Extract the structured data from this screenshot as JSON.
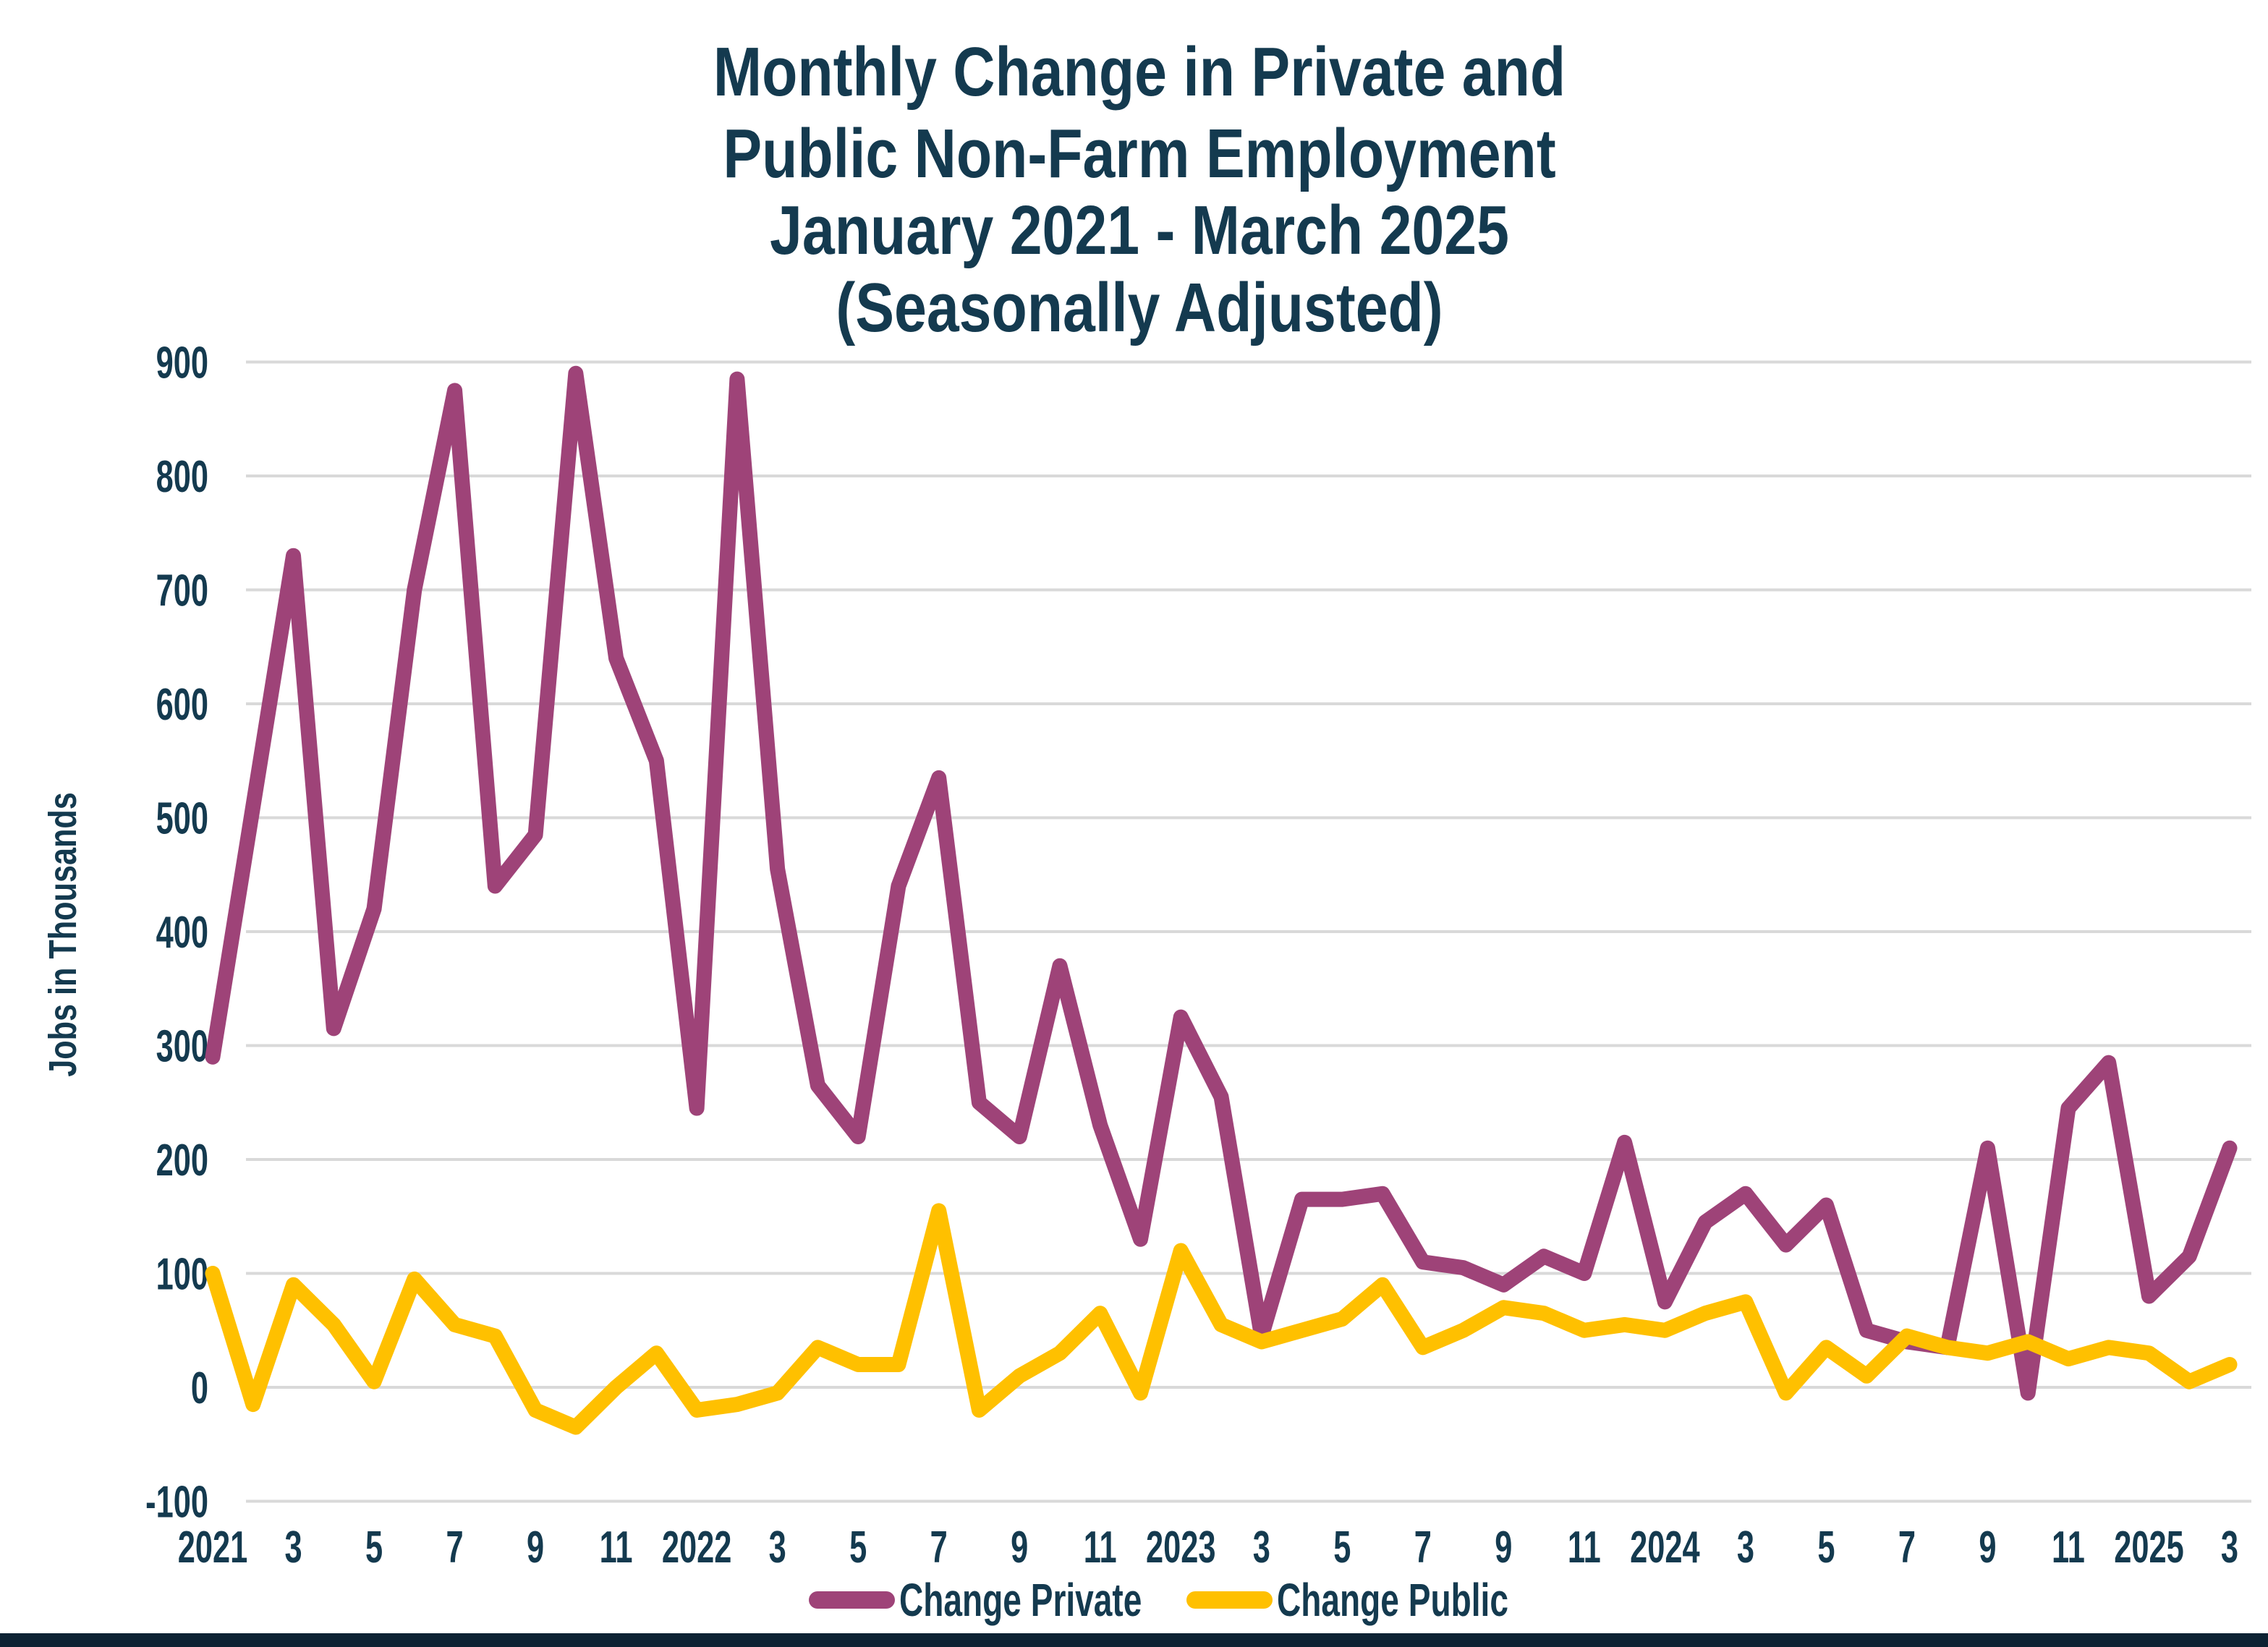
{
  "title": {
    "line1": "Monthly Change in Private and",
    "line2": "Public Non-Farm Employment",
    "line3": "January 2021 - March 2025",
    "line4": "(Seasonally Adjusted)"
  },
  "y_axis": {
    "label": "Jobs in Thousands"
  },
  "legend": {
    "private_label": "Change Private",
    "public_label": "Change Public"
  },
  "colors": {
    "private_line": "#9E4378",
    "public_line": "#FFC000",
    "text_navy": "#143A4F",
    "gridline": "#D9D9D9",
    "bottom_bar": "#0D2233",
    "background": "#FFFFFF"
  },
  "chart_data": {
    "type": "line",
    "title": "Monthly Change in Private and Public Non-Farm Employment January 2021 - March 2025 (Seasonally Adjusted)",
    "ylabel": "Jobs in Thousands",
    "xlabel": "",
    "ylim": [
      -100,
      900
    ],
    "y_ticks": [
      900,
      800,
      700,
      600,
      500,
      400,
      300,
      200,
      100,
      0,
      -100
    ],
    "x_tick_labels": [
      "2021",
      "3",
      "5",
      "7",
      "9",
      "11",
      "2022",
      "3",
      "5",
      "7",
      "9",
      "11",
      "2023",
      "3",
      "5",
      "7",
      "9",
      "11",
      "2024",
      "3",
      "5",
      "7",
      "9",
      "11",
      "2025",
      "3"
    ],
    "grid": true,
    "legend_position": "bottom",
    "x": [
      "Jan 2021",
      "Feb 2021",
      "Mar 2021",
      "Apr 2021",
      "May 2021",
      "Jun 2021",
      "Jul 2021",
      "Aug 2021",
      "Sep 2021",
      "Oct 2021",
      "Nov 2021",
      "Dec 2021",
      "Jan 2022",
      "Feb 2022",
      "Mar 2022",
      "Apr 2022",
      "May 2022",
      "Jun 2022",
      "Jul 2022",
      "Aug 2022",
      "Sep 2022",
      "Oct 2022",
      "Nov 2022",
      "Dec 2022",
      "Jan 2023",
      "Feb 2023",
      "Mar 2023",
      "Apr 2023",
      "May 2023",
      "Jun 2023",
      "Jul 2023",
      "Aug 2023",
      "Sep 2023",
      "Oct 2023",
      "Nov 2023",
      "Dec 2023",
      "Jan 2024",
      "Feb 2024",
      "Mar 2024",
      "Apr 2024",
      "May 2024",
      "Jun 2024",
      "Jul 2024",
      "Aug 2024",
      "Sep 2024",
      "Oct 2024",
      "Nov 2024",
      "Dec 2024",
      "Jan 2025",
      "Feb 2025",
      "Mar 2025"
    ],
    "series": [
      {
        "name": "Change Private",
        "color": "#9E4378",
        "values": [
          290,
          510,
          730,
          315,
          420,
          700,
          875,
          440,
          485,
          890,
          640,
          550,
          245,
          885,
          455,
          265,
          220,
          440,
          535,
          250,
          220,
          370,
          230,
          130,
          325,
          255,
          45,
          165,
          165,
          170,
          110,
          105,
          90,
          115,
          100,
          215,
          75,
          145,
          170,
          125,
          160,
          50,
          40,
          35,
          210,
          -5,
          245,
          285,
          80,
          115,
          210
        ]
      },
      {
        "name": "Change Public",
        "color": "#FFC000",
        "values": [
          100,
          -15,
          90,
          55,
          5,
          95,
          55,
          45,
          -20,
          -35,
          0,
          30,
          -20,
          -15,
          -5,
          35,
          20,
          20,
          155,
          -20,
          10,
          30,
          65,
          -5,
          120,
          55,
          40,
          50,
          60,
          90,
          35,
          50,
          70,
          65,
          50,
          55,
          50,
          65,
          75,
          -5,
          35,
          10,
          45,
          35,
          30,
          40,
          25,
          35,
          30,
          5,
          20
        ]
      }
    ]
  }
}
